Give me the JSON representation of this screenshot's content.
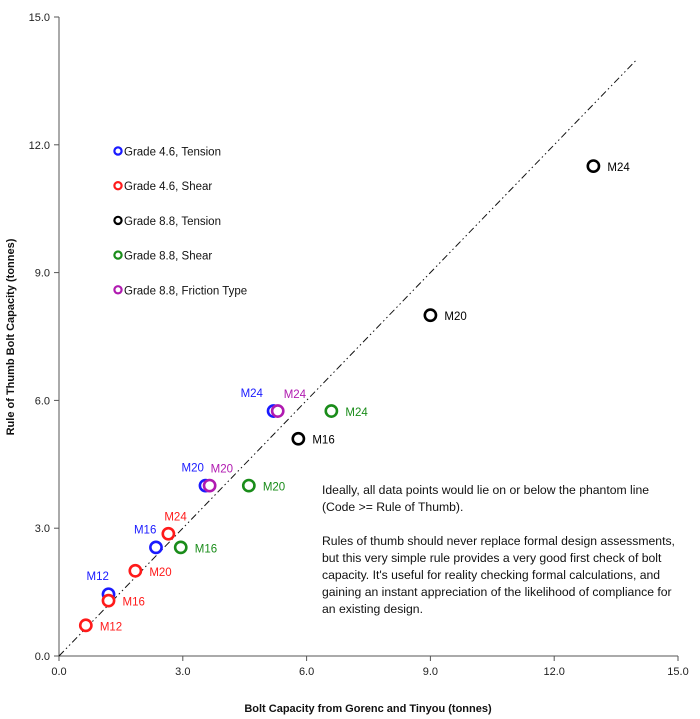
{
  "chart_data": {
    "type": "scatter",
    "xlabel": "Bolt Capacity from Gorenc and Tinyou (tonnes)",
    "ylabel": "Rule of Thumb Bolt Capacity (tonnes)",
    "xlim": [
      0,
      15
    ],
    "ylim": [
      0,
      15
    ],
    "x_ticks": [
      "0.0",
      "3.0",
      "6.0",
      "9.0",
      "12.0",
      "15.0"
    ],
    "y_ticks": [
      "0.0",
      "3.0",
      "6.0",
      "9.0",
      "12.0",
      "15.0"
    ],
    "grid": false,
    "legend_position": "top-left",
    "phantom_line": {
      "x": [
        0,
        14
      ],
      "y": [
        0,
        14
      ],
      "style": "dash-dot-dot"
    },
    "series": [
      {
        "name": "Grade 4.6, Tension",
        "color": "#1a1aff",
        "points": [
          {
            "x": 1.2,
            "y": 1.45,
            "label": "M12"
          },
          {
            "x": 2.35,
            "y": 2.55,
            "label": "M16"
          },
          {
            "x": 3.55,
            "y": 4.0,
            "label": "M20"
          },
          {
            "x": 5.2,
            "y": 5.75,
            "label": "M24"
          }
        ]
      },
      {
        "name": "Grade 4.6, Shear",
        "color": "#ff1a1a",
        "points": [
          {
            "x": 0.65,
            "y": 0.72,
            "label": "M12"
          },
          {
            "x": 1.2,
            "y": 1.3,
            "label": "M16"
          },
          {
            "x": 1.85,
            "y": 2.0,
            "label": "M20"
          },
          {
            "x": 2.65,
            "y": 2.87,
            "label": "M24"
          }
        ]
      },
      {
        "name": "Grade 8.8, Tension",
        "color": "#000000",
        "points": [
          {
            "x": 5.8,
            "y": 5.1,
            "label": "M16"
          },
          {
            "x": 9.0,
            "y": 8.0,
            "label": "M20"
          },
          {
            "x": 12.95,
            "y": 11.5,
            "label": "M24"
          }
        ]
      },
      {
        "name": "Grade 8.8, Shear",
        "color": "#1a8c1a",
        "points": [
          {
            "x": 2.95,
            "y": 2.55,
            "label": "M16"
          },
          {
            "x": 4.6,
            "y": 4.0,
            "label": "M20"
          },
          {
            "x": 6.6,
            "y": 5.75,
            "label": "M24"
          }
        ]
      },
      {
        "name": "Grade 8.8, Friction Type",
        "color": "#b01ab0",
        "points": [
          {
            "x": 3.65,
            "y": 4.0,
            "label": "M20"
          },
          {
            "x": 5.3,
            "y": 5.75,
            "label": "M24"
          }
        ]
      }
    ]
  },
  "annotation": {
    "paragraph1": "Ideally,  all data points would lie on or below the phantom line (Code >= Rule of Thumb).",
    "paragraph2": "Rules of thumb should never replace formal design assessments, but this very simple rule provides a very good first check of bolt capacity.  It's useful for reality checking formal calculations, and gaining an instant appreciation of the likelihood of compliance for an existing design."
  }
}
